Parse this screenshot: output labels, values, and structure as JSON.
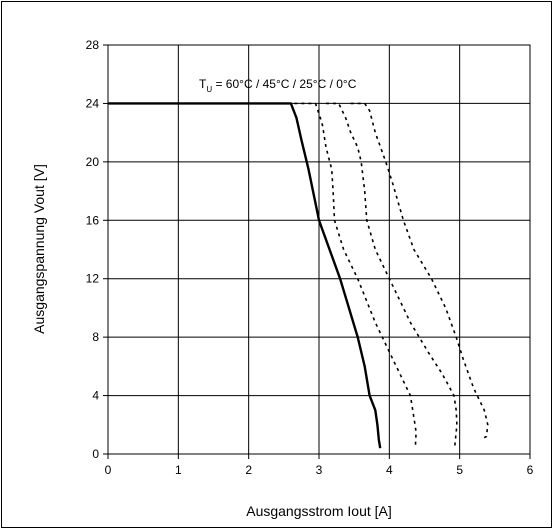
{
  "chart_data": {
    "type": "line",
    "title": "",
    "annotation": {
      "prefix": "T",
      "subscript": "U",
      "text": " = 60°C / 45°C / 25°C / 0°C"
    },
    "xlabel": "Ausgangsstrom Iout [A]",
    "ylabel": "Ausgangspannung Vout [V]",
    "xlim": [
      0,
      6
    ],
    "ylim": [
      0,
      28
    ],
    "xticks": [
      0,
      1,
      2,
      3,
      4,
      5,
      6
    ],
    "yticks": [
      0,
      4,
      8,
      12,
      16,
      20,
      24,
      28
    ],
    "grid": true,
    "legend": "none",
    "series": [
      {
        "style": "solid",
        "color": "#000000",
        "points": [
          [
            0,
            24
          ],
          [
            2.6,
            24
          ],
          [
            2.68,
            23
          ],
          [
            2.75,
            21.5
          ],
          [
            2.85,
            19.5
          ],
          [
            3.0,
            16
          ],
          [
            3.3,
            12
          ],
          [
            3.55,
            8
          ],
          [
            3.65,
            6
          ],
          [
            3.72,
            4
          ],
          [
            3.8,
            3
          ],
          [
            3.83,
            2
          ],
          [
            3.85,
            1
          ],
          [
            3.87,
            0.4
          ]
        ]
      },
      {
        "style": "dotted",
        "color": "#000000",
        "points": [
          [
            2.65,
            24
          ],
          [
            2.85,
            24
          ],
          [
            2.95,
            24
          ],
          [
            3.02,
            23
          ],
          [
            3.05,
            22.5
          ],
          [
            3.1,
            21
          ],
          [
            3.18,
            19.5
          ],
          [
            3.2,
            18
          ],
          [
            3.22,
            16
          ],
          [
            3.35,
            14
          ],
          [
            3.55,
            12
          ],
          [
            3.8,
            9
          ],
          [
            4.05,
            6.5
          ],
          [
            4.3,
            4
          ],
          [
            4.35,
            2.5
          ],
          [
            4.38,
            1.5
          ],
          [
            4.37,
            0.5
          ]
        ]
      },
      {
        "style": "dotted",
        "color": "#000000",
        "points": [
          [
            3.1,
            24
          ],
          [
            3.28,
            24
          ],
          [
            3.38,
            23
          ],
          [
            3.45,
            22
          ],
          [
            3.55,
            21
          ],
          [
            3.6,
            20
          ],
          [
            3.65,
            18
          ],
          [
            3.68,
            16
          ],
          [
            3.8,
            14
          ],
          [
            3.95,
            12.5
          ],
          [
            4.1,
            11
          ],
          [
            4.3,
            9
          ],
          [
            4.55,
            7
          ],
          [
            4.75,
            5.5
          ],
          [
            4.92,
            4
          ],
          [
            4.95,
            3
          ],
          [
            4.96,
            2
          ],
          [
            4.93,
            0.5
          ]
        ]
      },
      {
        "style": "dotted",
        "color": "#000000",
        "points": [
          [
            3.45,
            24
          ],
          [
            3.65,
            24
          ],
          [
            3.72,
            23.5
          ],
          [
            3.8,
            22
          ],
          [
            3.95,
            20
          ],
          [
            4.05,
            18.5
          ],
          [
            4.2,
            16
          ],
          [
            4.35,
            14
          ],
          [
            4.6,
            12
          ],
          [
            4.8,
            10
          ],
          [
            4.95,
            8
          ],
          [
            5.05,
            6.5
          ],
          [
            5.2,
            4.5
          ],
          [
            5.35,
            3
          ],
          [
            5.4,
            2
          ],
          [
            5.38,
            1.2
          ],
          [
            5.3,
            1
          ]
        ]
      }
    ]
  }
}
